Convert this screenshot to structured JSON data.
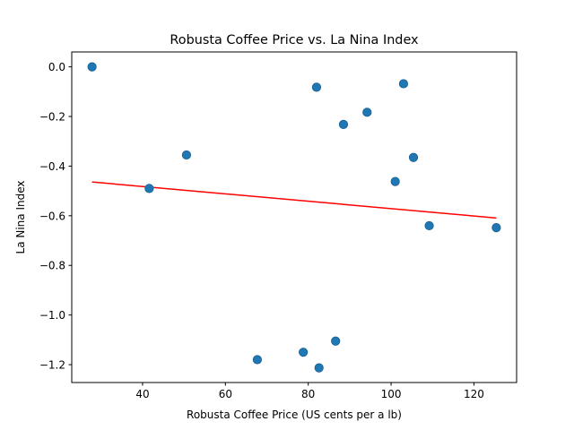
{
  "chart_data": {
    "type": "scatter",
    "title": "Robusta Coffee Price vs. La Nina Index",
    "xlabel": "Robusta Coffee Price (US cents per a lb)",
    "ylabel": "La Nina Index",
    "xlim": [
      22.9,
      130.3
    ],
    "ylim": [
      -1.272,
      0.06
    ],
    "xticks": [
      40,
      60,
      80,
      100,
      120
    ],
    "yticks": [
      0.0,
      -0.2,
      -0.4,
      -0.6,
      -0.8,
      -1.0,
      -1.2
    ],
    "xtick_labels": [
      "40",
      "60",
      "80",
      "100",
      "120"
    ],
    "ytick_labels": [
      "0.0",
      "−0.2",
      "−0.4",
      "−0.6",
      "−0.8",
      "−1.0",
      "−1.2"
    ],
    "grid": false,
    "point_color": "#1f77b4",
    "trend_color": "#ff0000",
    "points": [
      {
        "x": 27.8,
        "y": 0.0
      },
      {
        "x": 41.6,
        "y": -0.49
      },
      {
        "x": 50.6,
        "y": -0.355
      },
      {
        "x": 67.7,
        "y": -1.18
      },
      {
        "x": 78.8,
        "y": -1.15
      },
      {
        "x": 82.0,
        "y": -0.082
      },
      {
        "x": 82.6,
        "y": -1.213
      },
      {
        "x": 86.6,
        "y": -1.105
      },
      {
        "x": 88.5,
        "y": -0.232
      },
      {
        "x": 94.2,
        "y": -0.183
      },
      {
        "x": 101.0,
        "y": -0.462
      },
      {
        "x": 103.0,
        "y": -0.068
      },
      {
        "x": 105.4,
        "y": -0.365
      },
      {
        "x": 109.2,
        "y": -0.64
      },
      {
        "x": 125.4,
        "y": -0.648
      }
    ],
    "trendline": {
      "x": [
        27.8,
        125.4
      ],
      "y": [
        -0.464,
        -0.609
      ]
    }
  }
}
